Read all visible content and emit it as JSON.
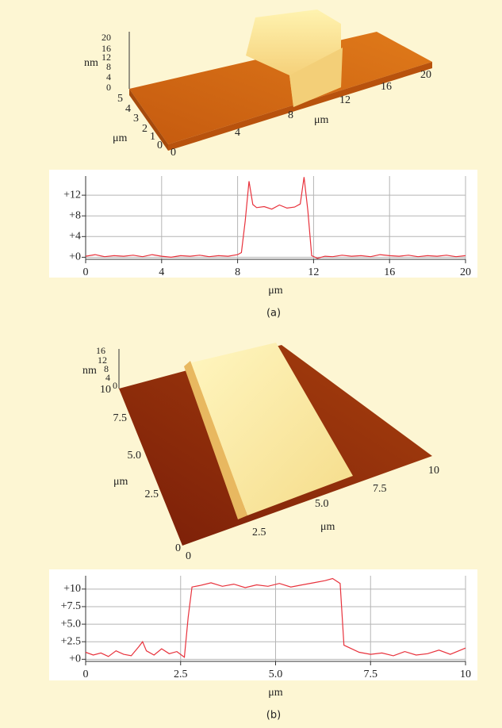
{
  "surfaces": [
    {
      "z_label": "nm",
      "z_ticks": [
        "20",
        "16",
        "12",
        "8",
        "4",
        "0"
      ],
      "y_label": "μm",
      "y_ticks": [
        "5",
        "4",
        "3",
        "2",
        "1",
        "0"
      ],
      "x_label": "μm",
      "x_ticks": [
        "0",
        "4",
        "8",
        "12",
        "16",
        "20"
      ]
    },
    {
      "z_label": "nm",
      "z_ticks": [
        "16",
        "12",
        "8",
        "4",
        "0"
      ],
      "y_label": "μm",
      "y_ticks": [
        "10",
        "7.5",
        "5.0",
        "2.5",
        "0"
      ],
      "x_label": "μm",
      "x_ticks": [
        "0",
        "2.5",
        "5.0",
        "7.5",
        "10"
      ]
    }
  ],
  "captions": [
    "(a)",
    "(b)"
  ],
  "chart_data": [
    {
      "type": "line",
      "x_label": "μm",
      "color": "#e8323c",
      "grid": true,
      "x": [
        0,
        0.5,
        1,
        1.5,
        2,
        2.5,
        3,
        3.5,
        4,
        4.5,
        5,
        5.5,
        6,
        6.5,
        7,
        7.5,
        8,
        8.2,
        8.4,
        8.6,
        8.8,
        9,
        9.4,
        9.8,
        10.2,
        10.6,
        11,
        11.3,
        11.5,
        11.7,
        11.9,
        12.2,
        12.6,
        13,
        13.5,
        14,
        14.5,
        15,
        15.5,
        16,
        16.5,
        17,
        17.5,
        18,
        18.5,
        19,
        19.5,
        20
      ],
      "values": [
        0.2,
        0.5,
        0.1,
        0.3,
        0.2,
        0.4,
        0.1,
        0.5,
        0.2,
        0.0,
        0.3,
        0.2,
        0.4,
        0.1,
        0.3,
        0.2,
        0.5,
        0.9,
        7,
        14.7,
        10.2,
        9.6,
        9.8,
        9.3,
        10.1,
        9.5,
        9.7,
        10.3,
        15.5,
        9,
        0.3,
        -0.2,
        0.2,
        0.1,
        0.4,
        0.2,
        0.3,
        0.1,
        0.5,
        0.3,
        0.2,
        0.4,
        0.1,
        0.3,
        0.2,
        0.4,
        0.1,
        0.3
      ],
      "xlim": [
        0,
        20
      ],
      "xticks": [
        0,
        4,
        8,
        12,
        16,
        20
      ],
      "ylim": [
        -0.4,
        15.7
      ],
      "yticks": [
        {
          "value": 0,
          "label": "+0"
        },
        {
          "value": 4,
          "label": "+4"
        },
        {
          "value": 8,
          "label": "+8"
        },
        {
          "value": 12,
          "label": "+12"
        }
      ]
    },
    {
      "type": "line",
      "x_label": "μm",
      "color": "#e8323c",
      "grid": true,
      "x": [
        0,
        0.2,
        0.4,
        0.6,
        0.8,
        1,
        1.2,
        1.4,
        1.5,
        1.6,
        1.8,
        2,
        2.2,
        2.4,
        2.6,
        2.7,
        2.8,
        3,
        3.3,
        3.6,
        3.9,
        4.2,
        4.5,
        4.8,
        5.1,
        5.4,
        5.7,
        6,
        6.3,
        6.5,
        6.7,
        6.8,
        7,
        7.2,
        7.5,
        7.8,
        8.1,
        8.4,
        8.7,
        9,
        9.3,
        9.6,
        10
      ],
      "values": [
        1,
        0.6,
        0.9,
        0.4,
        1.2,
        0.7,
        0.5,
        1.8,
        2.5,
        1.2,
        0.6,
        1.5,
        0.8,
        1.1,
        0.3,
        6,
        10.3,
        10.5,
        10.9,
        10.4,
        10.7,
        10.2,
        10.6,
        10.4,
        10.8,
        10.3,
        10.6,
        10.9,
        11.2,
        11.5,
        10.8,
        2,
        1.5,
        1,
        0.7,
        0.9,
        0.5,
        1.1,
        0.6,
        0.8,
        1.3,
        0.7,
        1.6
      ],
      "xlim": [
        0,
        10
      ],
      "xticks": [
        0,
        2.5,
        {
          "value": 5,
          "label": "5.0"
        },
        7.5,
        10
      ],
      "ylim": [
        -0.3,
        11.9
      ],
      "yticks": [
        {
          "value": 0,
          "label": "+0"
        },
        {
          "value": 2.5,
          "label": "+2.5"
        },
        {
          "value": 5,
          "label": "+5.0"
        },
        {
          "value": 7.5,
          "label": "+7.5"
        },
        {
          "value": 10,
          "label": "+10"
        }
      ]
    }
  ]
}
